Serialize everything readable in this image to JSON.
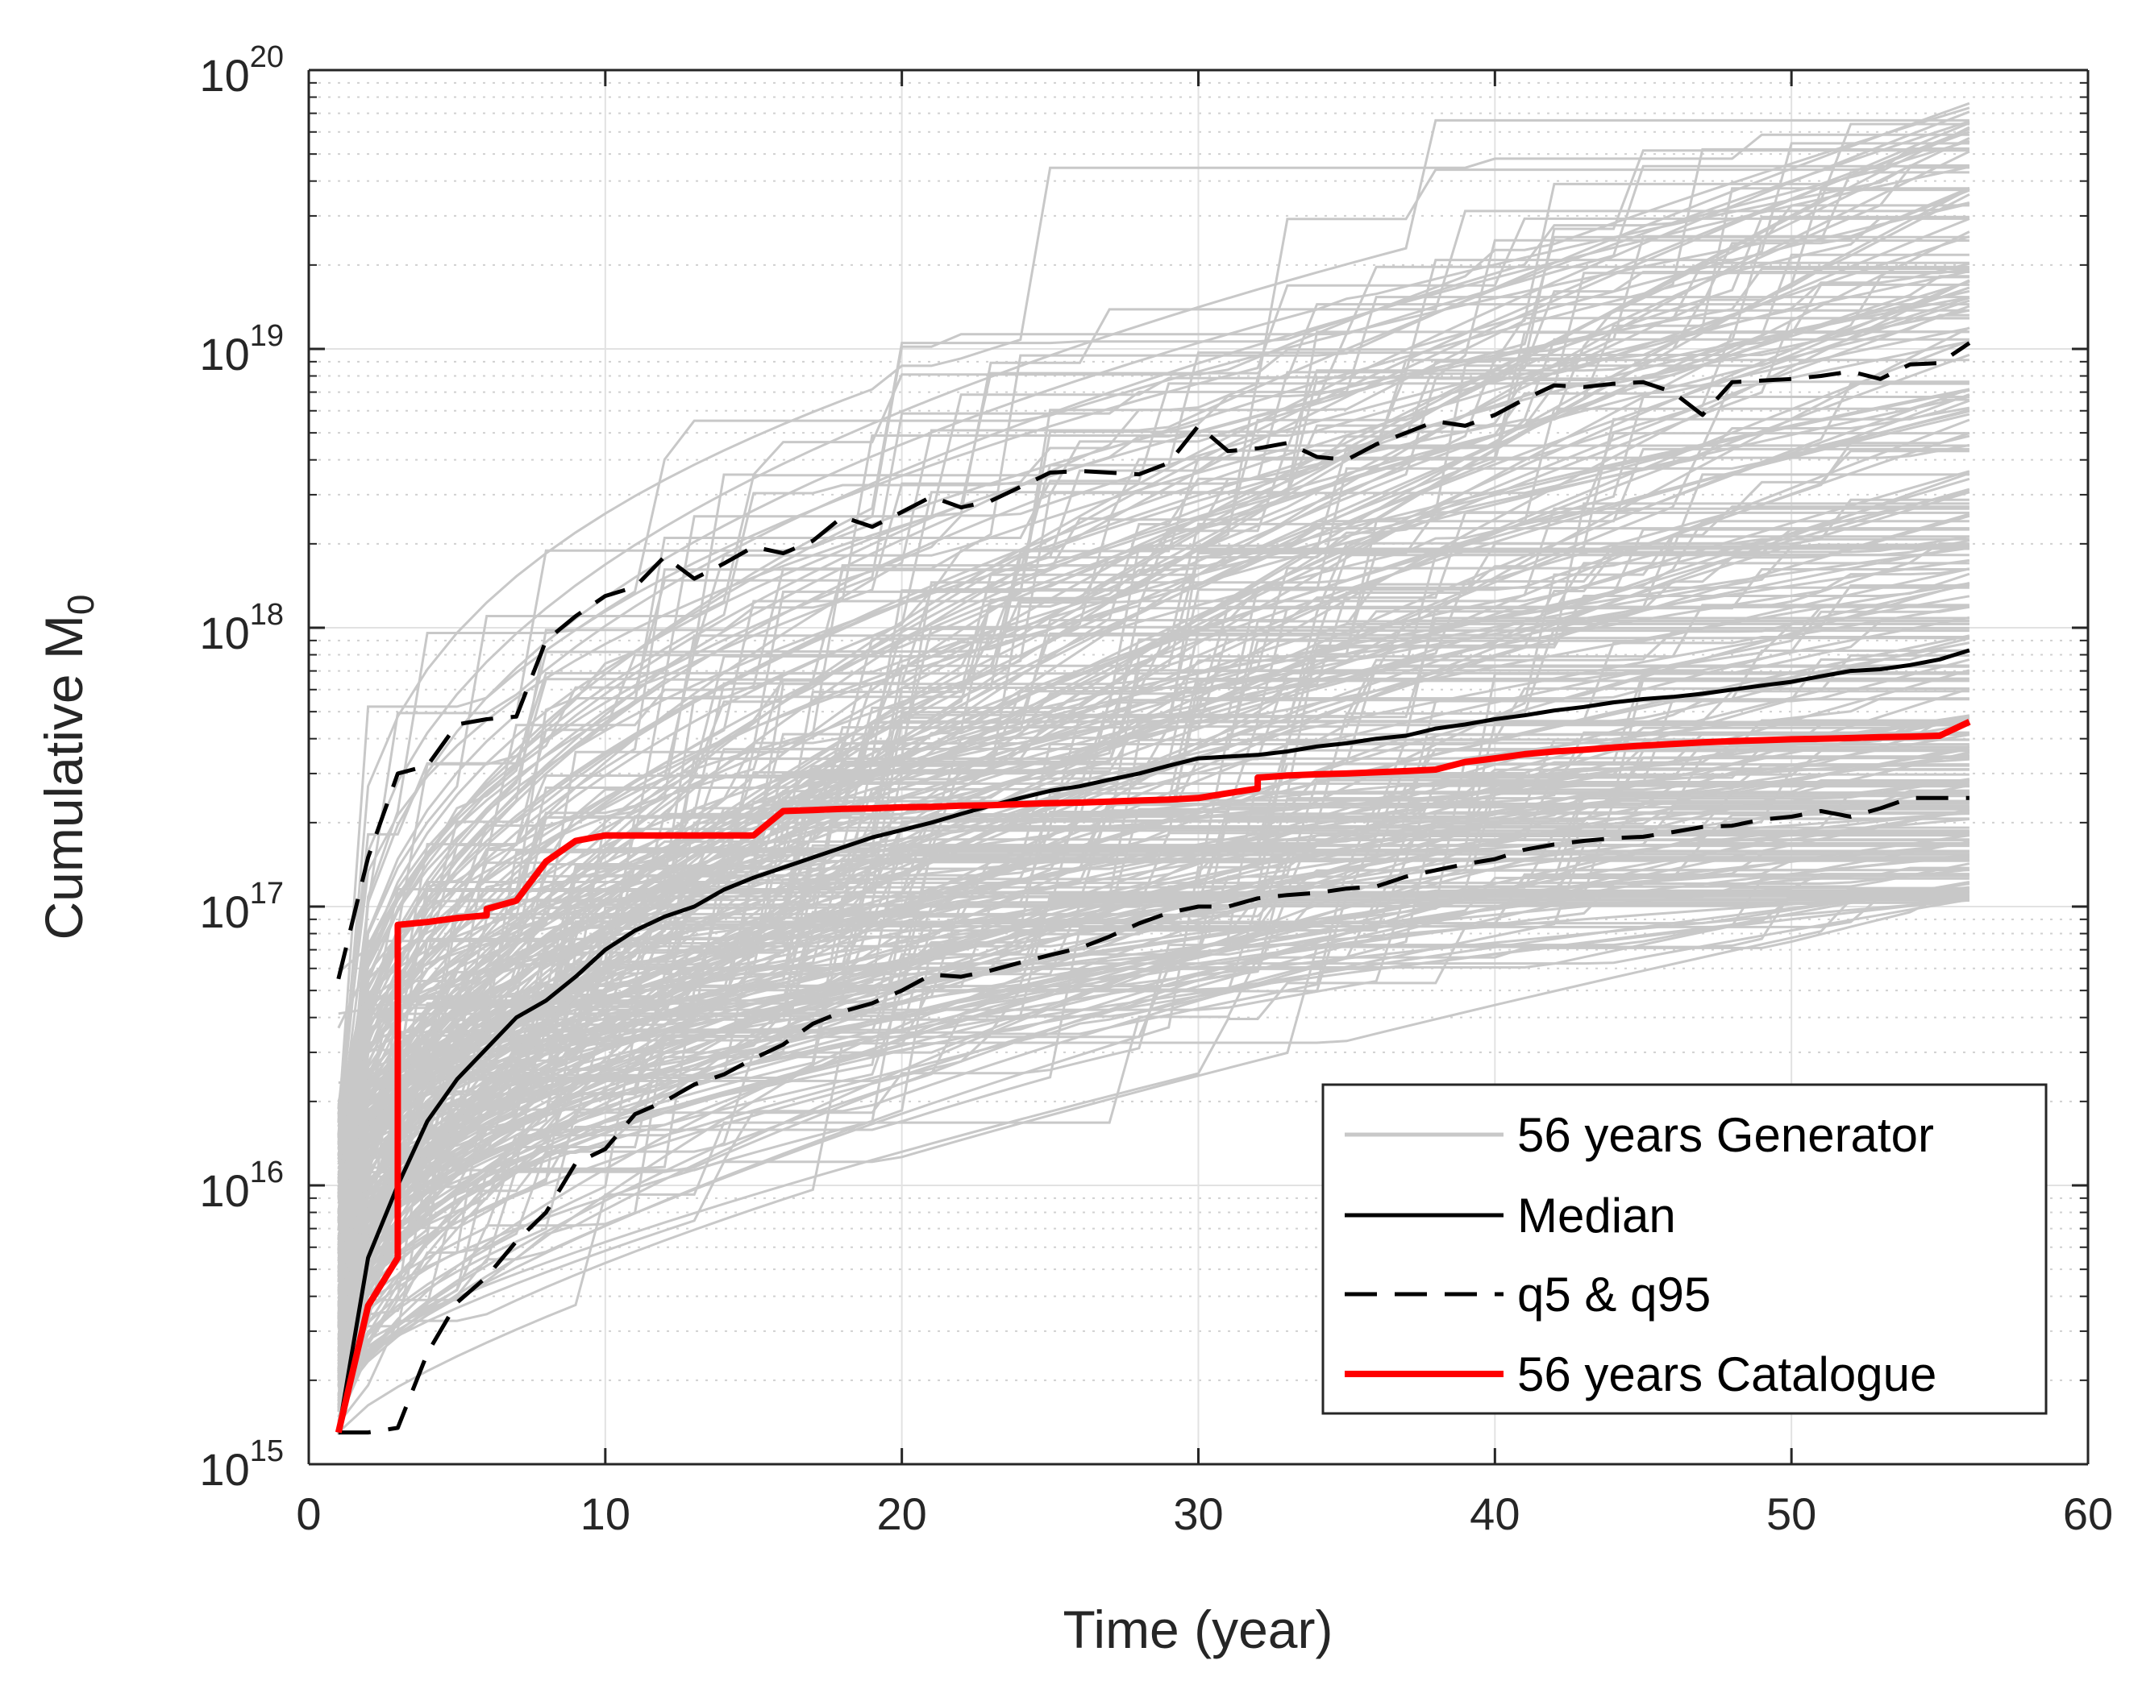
{
  "chart_data": {
    "type": "line",
    "xlabel": "Time (year)",
    "ylabel": "Cumulative M",
    "ylabel_subscript": "0",
    "yscale": "log",
    "xlim": [
      0,
      60
    ],
    "ylim_exponents": [
      15,
      20
    ],
    "xticks": [
      "0",
      "10",
      "20",
      "30",
      "40",
      "50",
      "60"
    ],
    "yticks": [
      {
        "base": "10",
        "exp": "15"
      },
      {
        "base": "10",
        "exp": "16"
      },
      {
        "base": "10",
        "exp": "17"
      },
      {
        "base": "10",
        "exp": "18"
      },
      {
        "base": "10",
        "exp": "19"
      },
      {
        "base": "10",
        "exp": "20"
      }
    ],
    "grid": true,
    "legend_position": "bottom-right",
    "colors": {
      "generator": "#c8c8c8",
      "median": "#000000",
      "quantile": "#000000",
      "catalogue": "#ff0000"
    },
    "legend": [
      {
        "label": "56 years Generator",
        "style": "gray-solid"
      },
      {
        "label": "Median",
        "style": "black-solid"
      },
      {
        "label": "q5 & q95",
        "style": "black-dashed"
      },
      {
        "label": "56 years Catalogue",
        "style": "red-solid"
      }
    ],
    "series": [
      {
        "name": "Median",
        "x": [
          1,
          2,
          3,
          4,
          5,
          6,
          7,
          8,
          9,
          10,
          11,
          12,
          13,
          14,
          15,
          16,
          17,
          18,
          19,
          20,
          21,
          22,
          23,
          24,
          25,
          26,
          27,
          28,
          29,
          30,
          31,
          32,
          33,
          34,
          35,
          36,
          37,
          38,
          39,
          40,
          41,
          42,
          43,
          44,
          45,
          46,
          47,
          48,
          49,
          50,
          51,
          52,
          53,
          54,
          55,
          56
        ],
        "y": [
          1300000000000000.0,
          5500000000000000.0,
          1e+16,
          1.7e+16,
          2.4e+16,
          3.1e+16,
          4e+16,
          4.6e+16,
          5.6e+16,
          7e+16,
          8.2e+16,
          9.2e+16,
          1e+17,
          1.15e+17,
          1.27e+17,
          1.38e+17,
          1.5e+17,
          1.63e+17,
          1.77e+17,
          1.88e+17,
          2e+17,
          2.15e+17,
          2.3e+17,
          2.45e+17,
          2.6e+17,
          2.7e+17,
          2.85e+17,
          3e+17,
          3.2e+17,
          3.4e+17,
          3.45e+17,
          3.5e+17,
          3.6e+17,
          3.75e+17,
          3.85e+17,
          4e+17,
          4.1e+17,
          4.35e+17,
          4.5e+17,
          4.7e+17,
          4.85e+17,
          5.05e+17,
          5.2e+17,
          5.4e+17,
          5.55e+17,
          5.65e+17,
          5.8e+17,
          6e+17,
          6.2e+17,
          6.4e+17,
          6.7e+17,
          7e+17,
          7.1e+17,
          7.35e+17,
          7.7e+17,
          8.3e+17
        ]
      },
      {
        "name": "q95",
        "x": [
          1,
          2,
          3,
          4,
          5,
          6,
          7,
          8,
          9,
          10,
          11,
          12,
          13,
          14,
          15,
          16,
          17,
          18,
          19,
          20,
          21,
          22,
          23,
          24,
          25,
          26,
          27,
          28,
          29,
          30,
          31,
          32,
          33,
          34,
          35,
          36,
          37,
          38,
          39,
          40,
          41,
          42,
          43,
          44,
          45,
          46,
          47,
          48,
          49,
          50,
          51,
          52,
          53,
          54,
          55,
          56
        ],
        "y": [
          5.5e+16,
          1.5e+17,
          3e+17,
          3.2e+17,
          4.5e+17,
          4.7e+17,
          4.8e+17,
          9e+17,
          1.1e+18,
          1.3e+18,
          1.4e+18,
          1.8e+18,
          1.5e+18,
          1.7e+18,
          1.95e+18,
          1.85e+18,
          2.05e+18,
          2.5e+18,
          2.3e+18,
          2.6e+18,
          2.95e+18,
          2.7e+18,
          2.85e+18,
          3.2e+18,
          3.6e+18,
          3.65e+18,
          3.6e+18,
          3.55e+18,
          3.9e+18,
          5.3e+18,
          4.3e+18,
          4.4e+18,
          4.6e+18,
          4.1e+18,
          4e+18,
          4.55e+18,
          5e+18,
          5.5e+18,
          5.3e+18,
          5.8e+18,
          6.6e+18,
          7.4e+18,
          7.3e+18,
          7.5e+18,
          7.6e+18,
          7e+18,
          5.8e+18,
          7.6e+18,
          7.7e+18,
          7.8e+18,
          8e+18,
          8.3e+18,
          7.8e+18,
          8.8e+18,
          8.9e+18,
          1.05e+19
        ]
      },
      {
        "name": "q5",
        "x": [
          1,
          2,
          3,
          4,
          5,
          6,
          7,
          8,
          9,
          10,
          11,
          12,
          13,
          14,
          15,
          16,
          17,
          18,
          19,
          20,
          21,
          22,
          23,
          24,
          25,
          26,
          27,
          28,
          29,
          30,
          31,
          32,
          33,
          34,
          35,
          36,
          37,
          38,
          39,
          40,
          41,
          42,
          43,
          44,
          45,
          46,
          47,
          48,
          49,
          50,
          51,
          52,
          53,
          54,
          55,
          56
        ],
        "y": [
          1300000000000000.0,
          1300000000000000.0,
          1350000000000000.0,
          2500000000000000.0,
          3800000000000000.0,
          4700000000000000.0,
          6300000000000000.0,
          8000000000000000.0,
          1.2e+16,
          1.35e+16,
          1.8e+16,
          2e+16,
          2.3e+16,
          2.5e+16,
          2.85e+16,
          3.2e+16,
          3.8e+16,
          4.2e+16,
          4.5e+16,
          5e+16,
          5.7e+16,
          5.6e+16,
          5.9e+16,
          6.3e+16,
          6.7e+16,
          7.1e+16,
          7.8e+16,
          8.7e+16,
          9.5e+16,
          1e+17,
          1e+17,
          1.07e+17,
          1.1e+17,
          1.12e+17,
          1.16e+17,
          1.18e+17,
          1.28e+17,
          1.35e+17,
          1.42e+17,
          1.48e+17,
          1.6e+17,
          1.67e+17,
          1.72e+17,
          1.76e+17,
          1.78e+17,
          1.85e+17,
          1.93e+17,
          1.95e+17,
          2.05e+17,
          2.1e+17,
          2.2e+17,
          2.1e+17,
          2.25e+17,
          2.45e+17,
          2.45e+17,
          2.45e+17
        ]
      },
      {
        "name": "56 years Catalogue",
        "x": [
          1,
          2,
          3,
          3,
          4,
          5,
          6,
          6,
          7,
          8,
          9,
          10,
          11,
          12,
          13,
          14,
          15,
          16,
          17,
          18,
          19,
          20,
          21,
          22,
          23,
          24,
          25,
          26,
          27,
          28,
          29,
          30,
          31,
          32,
          32,
          33,
          34,
          35,
          36,
          37,
          38,
          39,
          40,
          41,
          42,
          43,
          44,
          45,
          46,
          47,
          48,
          49,
          50,
          51,
          52,
          53,
          54,
          55,
          56
        ],
        "y": [
          1300000000000000.0,
          3700000000000000.0,
          5500000000000000.0,
          8.6e+16,
          8.8e+16,
          9.1e+16,
          9.3e+16,
          9.8e+16,
          1.05e+17,
          1.45e+17,
          1.72e+17,
          1.8e+17,
          1.8e+17,
          1.8e+17,
          1.8e+17,
          1.8e+17,
          1.8e+17,
          2.2e+17,
          2.22e+17,
          2.24e+17,
          2.25e+17,
          2.27e+17,
          2.28e+17,
          2.3e+17,
          2.31e+17,
          2.33e+17,
          2.35e+17,
          2.36e+17,
          2.38e+17,
          2.4e+17,
          2.42e+17,
          2.45e+17,
          2.55e+17,
          2.65e+17,
          2.9e+17,
          2.95e+17,
          2.98e+17,
          3e+17,
          3.03e+17,
          3.06e+17,
          3.1e+17,
          3.3e+17,
          3.4e+17,
          3.52e+17,
          3.6e+17,
          3.65e+17,
          3.72e+17,
          3.78e+17,
          3.83e+17,
          3.88e+17,
          3.92e+17,
          3.95e+17,
          3.98e+17,
          4e+17,
          4.02e+17,
          4.05e+17,
          4.07e+17,
          4.1e+17,
          4.6e+17
        ]
      }
    ],
    "generator_runs": 300,
    "generator_final_range": [
      1.05e+17,
      8e+19
    ]
  }
}
